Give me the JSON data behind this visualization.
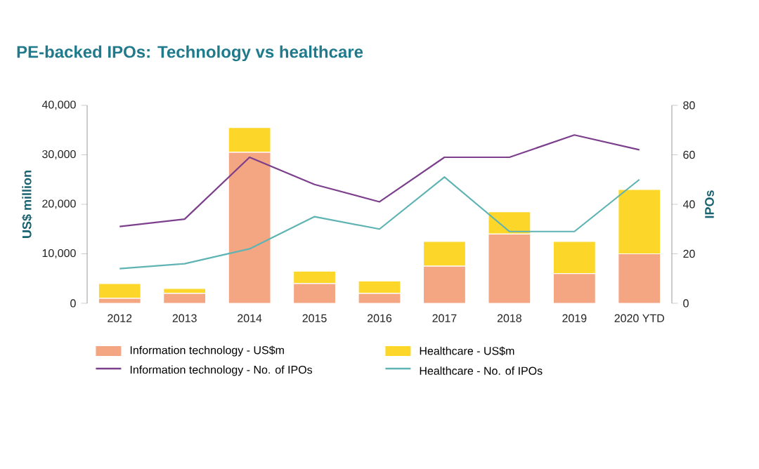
{
  "chart_data": {
    "type": "bar",
    "title": "PE-backed IPOs: Technology vs healthcare",
    "ylabel": "US$ million",
    "y2label": "IPOs",
    "categories": [
      "2012",
      "2013",
      "2014",
      "2015",
      "2016",
      "2017",
      "2018",
      "2019",
      "2020 YTD"
    ],
    "stacked": true,
    "series": [
      {
        "name": "Information technology - US$m",
        "color": "#f4a582",
        "values": [
          1000,
          2000,
          30500,
          4000,
          2000,
          7500,
          14000,
          6000,
          10000
        ]
      },
      {
        "name": "Healthcare - US$m",
        "color": "#fcd72a",
        "values": [
          3000,
          1000,
          5000,
          2500,
          2500,
          5000,
          4500,
          6500,
          13000
        ]
      },
      {
        "name": "Information technology - No. of IPOs",
        "type": "line",
        "axis": "y2",
        "color": "#7b3f8c",
        "values": [
          31,
          34,
          59,
          48,
          41,
          59,
          59,
          68,
          62
        ]
      },
      {
        "name": "Healthcare - No. of IPOs",
        "type": "line",
        "axis": "y2",
        "color": "#5fb3b3",
        "values": [
          14,
          16,
          22,
          35,
          30,
          51,
          29,
          29,
          50
        ]
      }
    ],
    "ylim": [
      0,
      40000
    ],
    "yticks": [
      0,
      {
        "value": 10000,
        "label": "10,000"
      },
      {
        "value": 20000,
        "label": "20,000"
      },
      {
        "value": 30000,
        "label": "30,000"
      },
      {
        "value": 40000,
        "label": "40,000"
      }
    ],
    "y2lim": [
      0,
      80
    ],
    "y2ticks": [
      0,
      20,
      40,
      60,
      80
    ],
    "legend": "bottom",
    "grid": false
  }
}
